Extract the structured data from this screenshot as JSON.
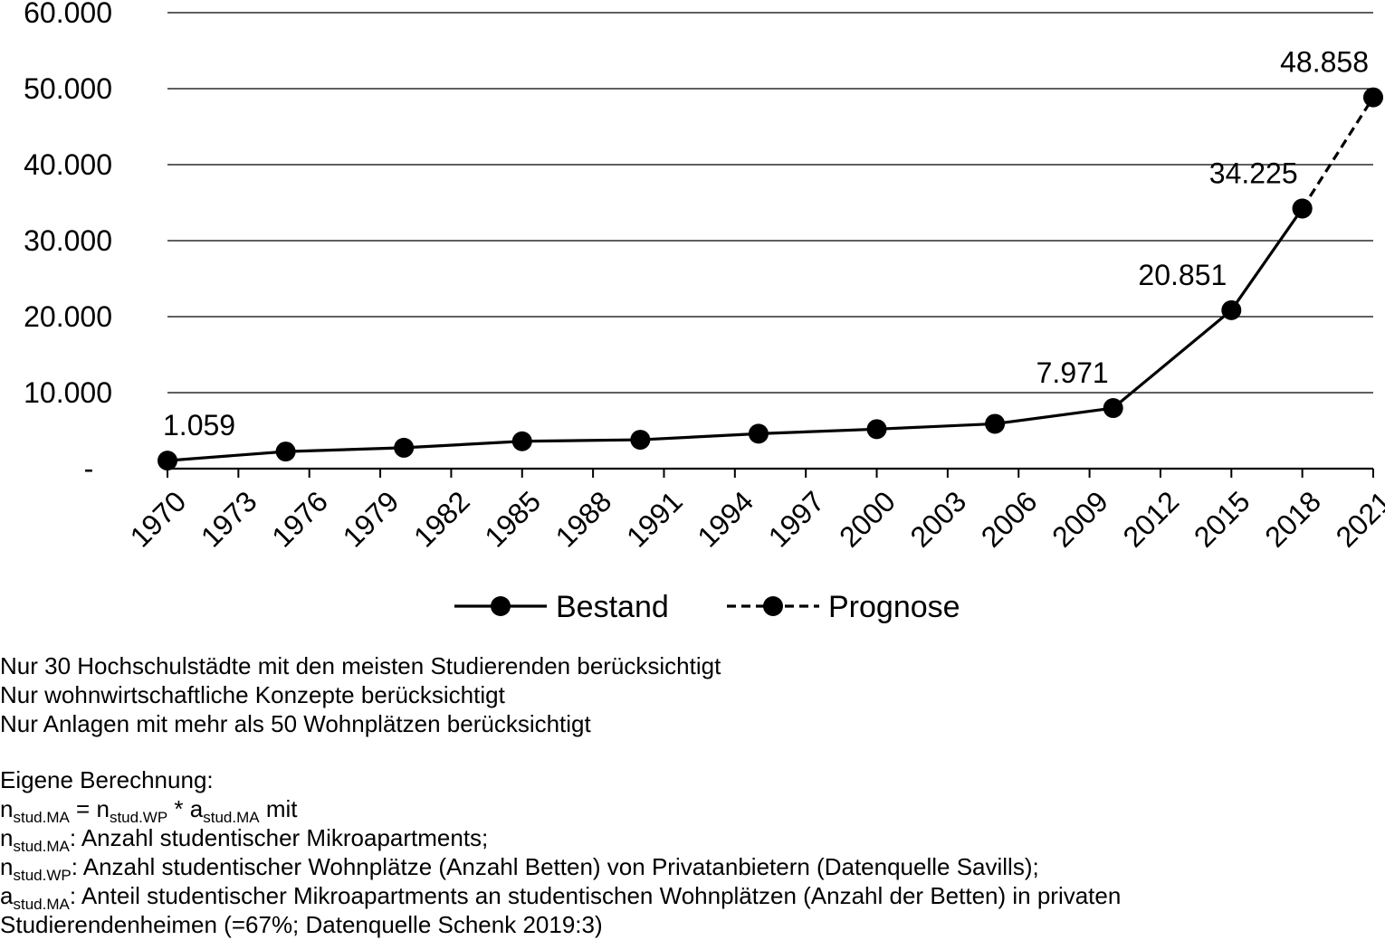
{
  "chart_data": {
    "type": "line",
    "x_ticks": [
      "1970",
      "1973",
      "1976",
      "1979",
      "1982",
      "1985",
      "1988",
      "1991",
      "1994",
      "1997",
      "2000",
      "2003",
      "2006",
      "2009",
      "2012",
      "2015",
      "2018",
      "2021"
    ],
    "ylim": [
      0,
      60000
    ],
    "y_ticks": [
      {
        "value": 0,
        "label": "-"
      },
      {
        "value": 10000,
        "label": "10.000"
      },
      {
        "value": 20000,
        "label": "20.000"
      },
      {
        "value": 30000,
        "label": "30.000"
      },
      {
        "value": 40000,
        "label": "40.000"
      },
      {
        "value": 50000,
        "label": "50.000"
      },
      {
        "value": 60000,
        "label": "60.000"
      }
    ],
    "grid": true,
    "legend_position": "bottom",
    "series": [
      {
        "name": "Bestand",
        "style": "solid",
        "color": "#000000",
        "points": [
          {
            "x": 1970,
            "y": 1059
          },
          {
            "x": 1975,
            "y": 2250
          },
          {
            "x": 1980,
            "y": 2750
          },
          {
            "x": 1985,
            "y": 3600
          },
          {
            "x": 1990,
            "y": 3800
          },
          {
            "x": 1995,
            "y": 4600
          },
          {
            "x": 2000,
            "y": 5200
          },
          {
            "x": 2005,
            "y": 5900
          },
          {
            "x": 2010,
            "y": 7971
          },
          {
            "x": 2015,
            "y": 20851
          },
          {
            "x": 2018,
            "y": 34225
          }
        ]
      },
      {
        "name": "Prognose",
        "style": "dashed",
        "color": "#000000",
        "points": [
          {
            "x": 2018,
            "y": 34225
          },
          {
            "x": 2021,
            "y": 48858
          }
        ]
      }
    ],
    "data_labels": [
      {
        "x": 1970,
        "y": 1059,
        "text": "1.059"
      },
      {
        "x": 2010,
        "y": 7971,
        "text": "7.971"
      },
      {
        "x": 2015,
        "y": 20851,
        "text": "20.851"
      },
      {
        "x": 2018,
        "y": 34225,
        "text": "34.225"
      },
      {
        "x": 2021,
        "y": 48858,
        "text": "48.858"
      }
    ]
  },
  "notes": {
    "line1": "Nur 30 Hochschulstädte mit den meisten Studierenden berücksichtigt",
    "line2": "Nur wohnwirtschaftliche Konzepte berücksichtigt",
    "line3": "Nur Anlagen mit mehr als 50 Wohnplätzen berücksichtigt",
    "heading": "Eigene Berechnung:",
    "formula": {
      "n": "n",
      "sub_ma": "stud.MA",
      "eq": " = ",
      "n2": "n",
      "sub_wp": "stud.WP",
      "times": " * ",
      "a": "a",
      "sub_ama": "stud.MA",
      "mit": " mit"
    },
    "def1": {
      "sym": "n",
      "sub": "stud.MA",
      "text": ": Anzahl studentischer Mikroapartments;"
    },
    "def2": {
      "sym": "n",
      "sub": "stud.WP",
      "text": ": Anzahl studentischer Wohnplätze (Anzahl Betten) von Privatanbietern (Datenquelle Savills);"
    },
    "def3": {
      "sym": "a",
      "sub": "stud.MA",
      "text": ": Anteil studentischer Mikroapartments an studentischen Wohnplätzen (Anzahl der Betten) in privaten"
    },
    "def3_cont": "Studierendenheimen (=67%; Datenquelle Schenk 2019:3)"
  }
}
